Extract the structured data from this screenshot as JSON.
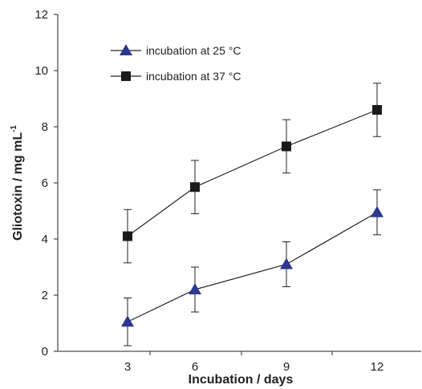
{
  "chart_data": {
    "type": "line",
    "x": [
      3,
      6,
      9,
      12
    ],
    "xlabel": "Incubation / days",
    "ylabel": "Gliotoxin / mg mL",
    "ylabel_superscript": "-1",
    "ylim": [
      0,
      12
    ],
    "yticks": [
      0,
      2,
      4,
      6,
      8,
      10,
      12
    ],
    "xticks": [
      3,
      6,
      9,
      12
    ],
    "grid": false,
    "legend_position": "top-left",
    "series": [
      {
        "name": "incubation at 25 °C",
        "marker": "triangle",
        "color": "#2b3990",
        "values": [
          1.05,
          2.2,
          3.1,
          4.95
        ],
        "error": [
          0.85,
          0.8,
          0.8,
          0.8
        ]
      },
      {
        "name": "incubation at 37 °C",
        "marker": "square",
        "color": "#1a1a1a",
        "values": [
          4.1,
          5.85,
          7.3,
          8.6
        ],
        "error": [
          0.95,
          0.95,
          0.95,
          0.95
        ]
      }
    ]
  }
}
